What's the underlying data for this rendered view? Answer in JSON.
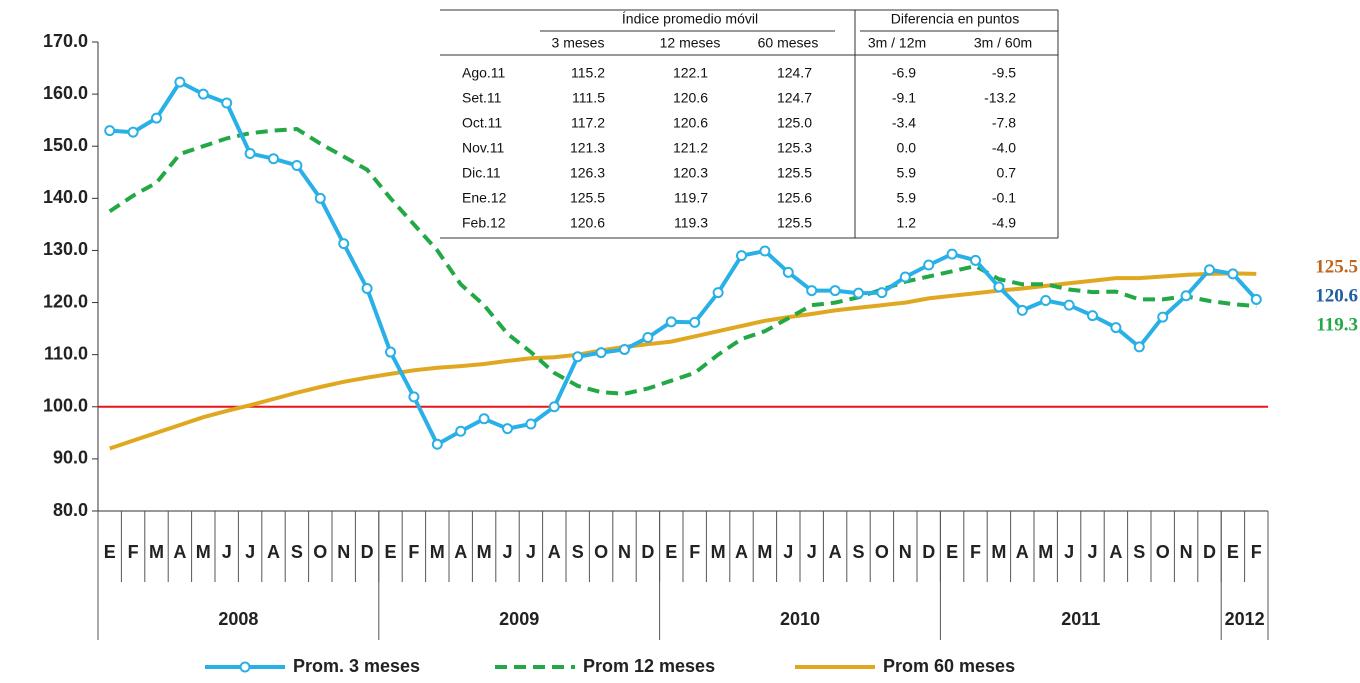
{
  "chart_data": {
    "type": "line",
    "categories": [
      "E",
      "F",
      "M",
      "A",
      "M",
      "J",
      "J",
      "A",
      "S",
      "O",
      "N",
      "D",
      "E",
      "F",
      "M",
      "A",
      "M",
      "J",
      "J",
      "A",
      "S",
      "O",
      "N",
      "D",
      "E",
      "F",
      "M",
      "A",
      "M",
      "J",
      "J",
      "A",
      "S",
      "O",
      "N",
      "D",
      "E",
      "F",
      "M",
      "A",
      "M",
      "J",
      "J",
      "A",
      "S",
      "O",
      "N",
      "D",
      "E",
      "F"
    ],
    "year_groups": [
      {
        "label": "2008",
        "months": 12
      },
      {
        "label": "2009",
        "months": 12
      },
      {
        "label": "2010",
        "months": 12
      },
      {
        "label": "2011",
        "months": 12
      },
      {
        "label": "2012",
        "months": 2
      }
    ],
    "ylim": [
      80,
      170
    ],
    "yticks": [
      {
        "value": 80,
        "label": "80.0"
      },
      {
        "value": 90,
        "label": "90.0"
      },
      {
        "value": 100,
        "label": "100.0"
      },
      {
        "value": 110,
        "label": "110.0"
      },
      {
        "value": 120,
        "label": "120.0"
      },
      {
        "value": 130,
        "label": "130.0"
      },
      {
        "value": 140,
        "label": "140.0"
      },
      {
        "value": 150,
        "label": "150.0"
      },
      {
        "value": 160,
        "label": "160.0"
      },
      {
        "value": 170,
        "label": "170.0"
      }
    ],
    "reference_line": {
      "value": 100,
      "color": "#e8141c"
    },
    "series": [
      {
        "name": "Prom. 3 meses",
        "color": "#29b0e6",
        "style": "solid-markers",
        "end_label_color": "#1f5fa0",
        "values": [
          153,
          152.7,
          155.4,
          162.3,
          160,
          158.3,
          148.6,
          147.6,
          146.3,
          140,
          131.3,
          122.7,
          110.5,
          101.9,
          92.8,
          95.3,
          97.7,
          95.8,
          96.7,
          100,
          109.6,
          110.4,
          111,
          113.3,
          116.3,
          116.2,
          121.9,
          129,
          129.9,
          125.8,
          122.3,
          122.3,
          121.8,
          121.9,
          124.9,
          127.2,
          129.3,
          128.1,
          123,
          118.5,
          120.4,
          119.5,
          117.5,
          115.2,
          111.5,
          117.2,
          121.3,
          126.3,
          125.5,
          120.6
        ]
      },
      {
        "name": "Prom 12 meses",
        "color": "#22a845",
        "style": "dashed",
        "end_label_color": "#22a845",
        "values": [
          137.5,
          140.5,
          143,
          148.5,
          150,
          151.5,
          152.5,
          153,
          153.3,
          150.5,
          148,
          145.5,
          140,
          135,
          130,
          123.5,
          119.5,
          114,
          110.5,
          106.5,
          104,
          102.8,
          102.5,
          103.5,
          105,
          106.5,
          110,
          113,
          114.5,
          117,
          119.5,
          120,
          121,
          122.5,
          124,
          125,
          126,
          127,
          124.5,
          123.5,
          123.5,
          122.5,
          122,
          122.1,
          120.6,
          120.6,
          121.2,
          120.3,
          119.7,
          119.3
        ]
      },
      {
        "name": "Prom 60 meses",
        "color": "#e0a820",
        "style": "solid",
        "end_label_color": "#c0641c",
        "values": [
          92,
          93.5,
          95,
          96.5,
          98,
          99.2,
          100.3,
          101.5,
          102.7,
          103.8,
          104.8,
          105.6,
          106.3,
          107,
          107.5,
          107.8,
          108.2,
          108.8,
          109.3,
          109.5,
          110,
          110.8,
          111.5,
          112,
          112.5,
          113.5,
          114.5,
          115.5,
          116.5,
          117.2,
          117.8,
          118.5,
          119,
          119.5,
          120,
          120.8,
          121.3,
          121.8,
          122.3,
          122.7,
          123.2,
          123.7,
          124.2,
          124.7,
          124.7,
          125,
          125.3,
          125.5,
          125.6,
          125.5
        ]
      }
    ]
  },
  "table": {
    "group_headers": [
      "Índice promedio móvil",
      "Diferencia en puntos"
    ],
    "columns": [
      "3 meses",
      "12 meses",
      "60 meses",
      "3m / 12m",
      "3m / 60m"
    ],
    "rows": [
      [
        "Ago.11",
        "115.2",
        "122.1",
        "124.7",
        "-6.9",
        "-9.5"
      ],
      [
        "Set.11",
        "111.5",
        "120.6",
        "124.7",
        "-9.1",
        "-13.2"
      ],
      [
        "Oct.11",
        "117.2",
        "120.6",
        "125.0",
        "-3.4",
        "-7.8"
      ],
      [
        "Nov.11",
        "121.3",
        "121.2",
        "125.3",
        "0.0",
        "-4.0"
      ],
      [
        "Dic.11",
        "126.3",
        "120.3",
        "125.5",
        "5.9",
        "0.7"
      ],
      [
        "Ene.12",
        "125.5",
        "119.7",
        "125.6",
        "5.9",
        "-0.1"
      ],
      [
        "Feb.12",
        "120.6",
        "119.3",
        "125.5",
        "1.2",
        "-4.9"
      ]
    ]
  }
}
